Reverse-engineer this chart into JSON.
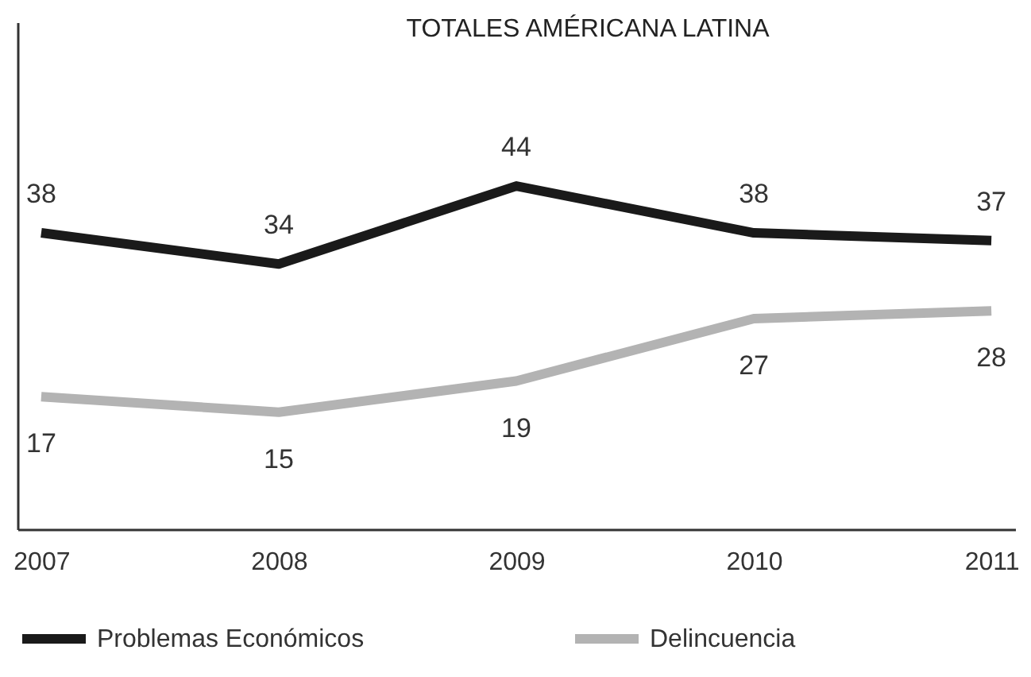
{
  "chart_data": {
    "type": "line",
    "title": "TOTALES AMÉRICANA LATINA",
    "categories": [
      "2007",
      "2008",
      "2009",
      "2010",
      "2011"
    ],
    "series": [
      {
        "name": "Problemas Económicos",
        "color": "#1a1a1a",
        "values": [
          38,
          34,
          44,
          38,
          37
        ]
      },
      {
        "name": "Delincuencia",
        "color": "#b3b3b3",
        "values": [
          17,
          15,
          19,
          27,
          28
        ]
      }
    ],
    "ylim": [
      0,
      65
    ],
    "data_labels": true,
    "legend": "bottom",
    "tick_labels": "x",
    "grid": false,
    "marker": "none",
    "line_style": "solid"
  }
}
